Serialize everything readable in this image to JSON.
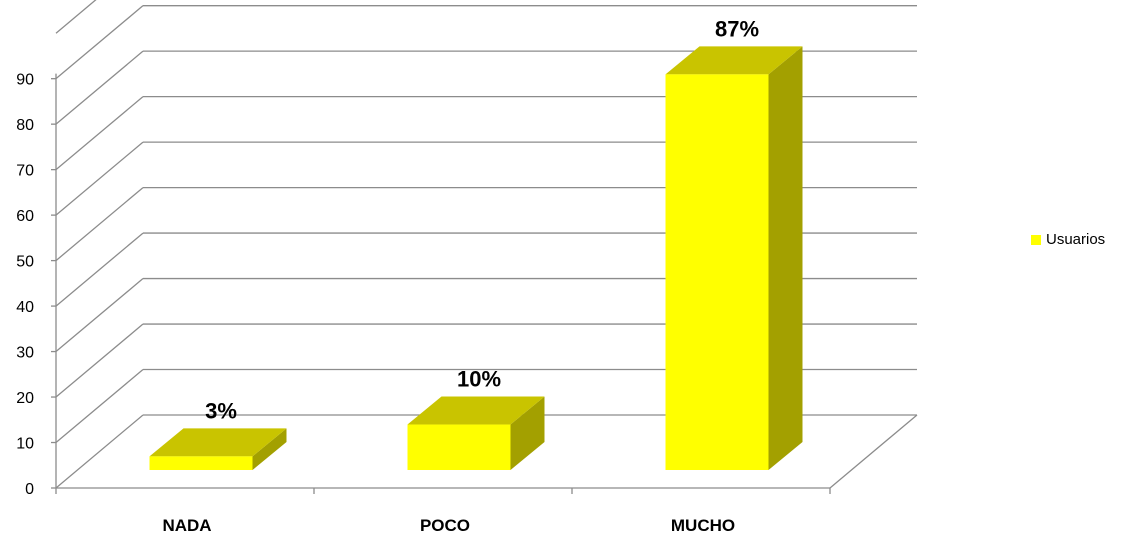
{
  "chart_data": {
    "type": "bar",
    "categories": [
      "NADA",
      "POCO",
      "MUCHO"
    ],
    "series": [
      {
        "name": "Usuarios",
        "values": [
          3,
          10,
          87
        ]
      }
    ],
    "data_labels": [
      "3%",
      "10%",
      "87%"
    ],
    "ylim": [
      0,
      100
    ],
    "yticks": [
      0,
      10,
      20,
      30,
      40,
      50,
      60,
      70,
      80,
      90
    ],
    "grid": true,
    "legend_position": "right",
    "colors": {
      "front": "#ffff00",
      "top": "#c9c400",
      "side": "#a3a000",
      "grid": "#8c8c8c"
    }
  }
}
